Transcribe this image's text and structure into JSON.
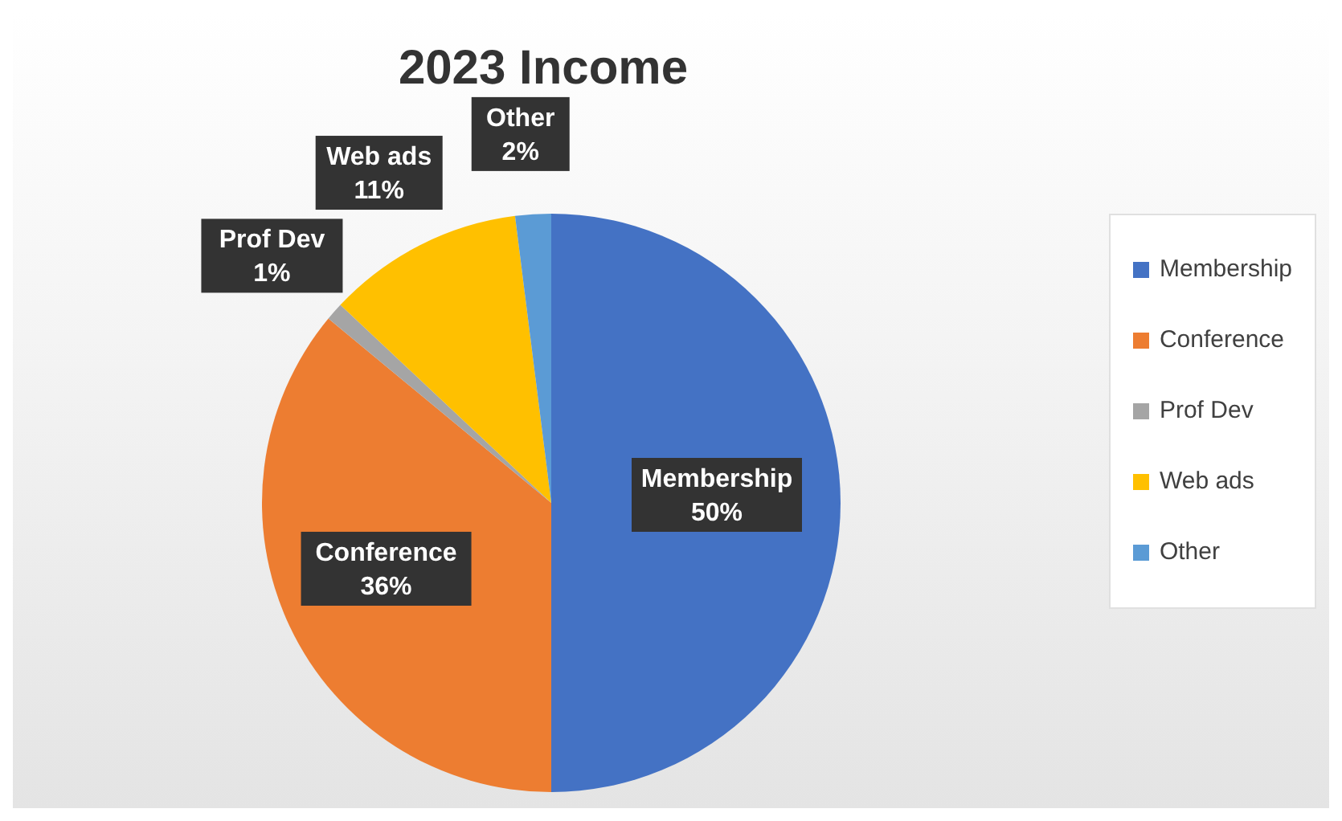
{
  "chart_data": {
    "type": "pie",
    "title": "2023 Income",
    "categories": [
      "Membership",
      "Conference",
      "Prof Dev",
      "Web ads",
      "Other"
    ],
    "values": [
      50,
      36,
      1,
      11,
      2
    ],
    "colors": [
      "#4472c4",
      "#ed7d31",
      "#a5a5a5",
      "#ffc000",
      "#5b9bd5"
    ],
    "value_labels": [
      "50%",
      "36%",
      "1%",
      "11%",
      "2%"
    ],
    "legend": "right"
  }
}
